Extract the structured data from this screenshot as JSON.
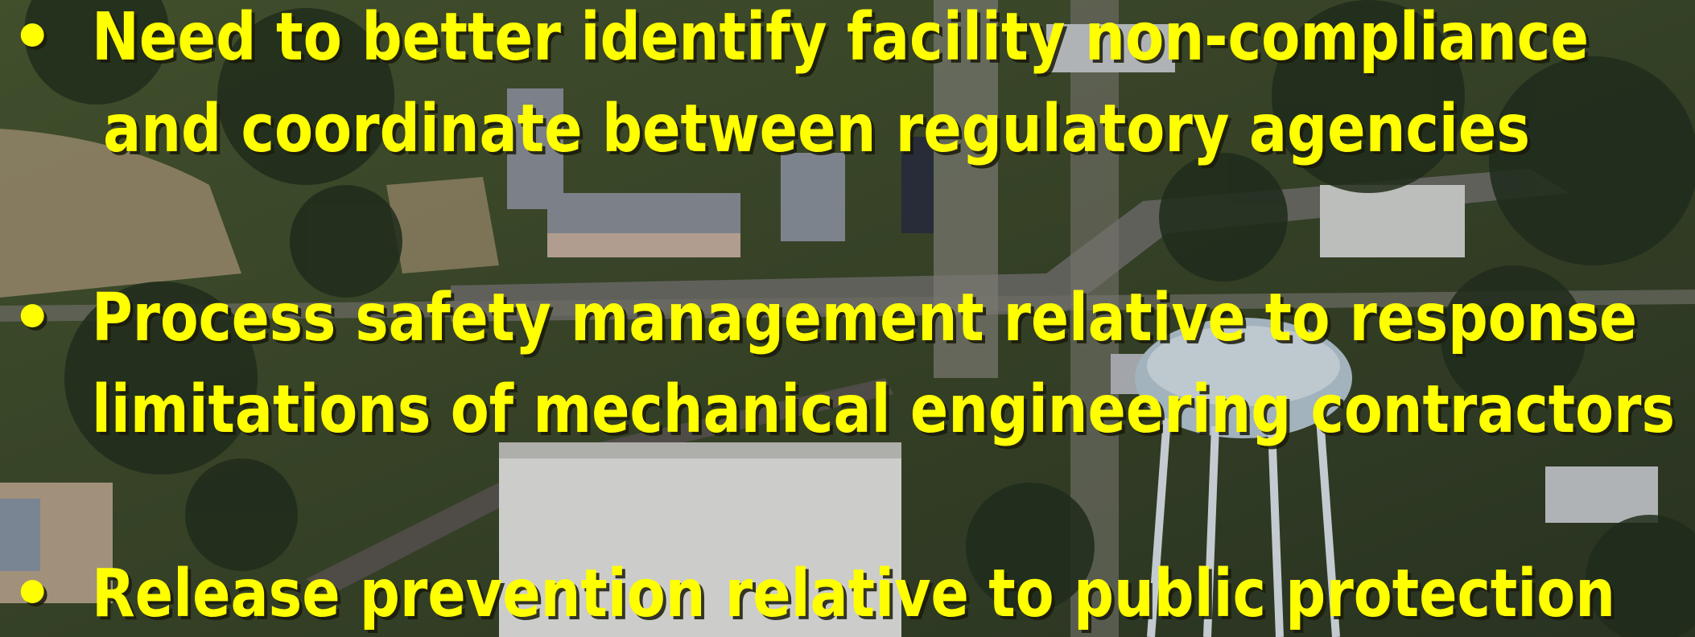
{
  "slide": {
    "bullets": [
      {
        "marker": "•",
        "lines": [
          "Need to better identify facility non-compliance",
          "and coordinate between regulatory agencies"
        ]
      },
      {
        "marker": "•",
        "lines": [
          "Process safety management relative to response",
          "limitations of mechanical engineering contractors"
        ]
      },
      {
        "marker": "•",
        "lines": [
          "Release prevention relative to public protection"
        ]
      }
    ]
  }
}
